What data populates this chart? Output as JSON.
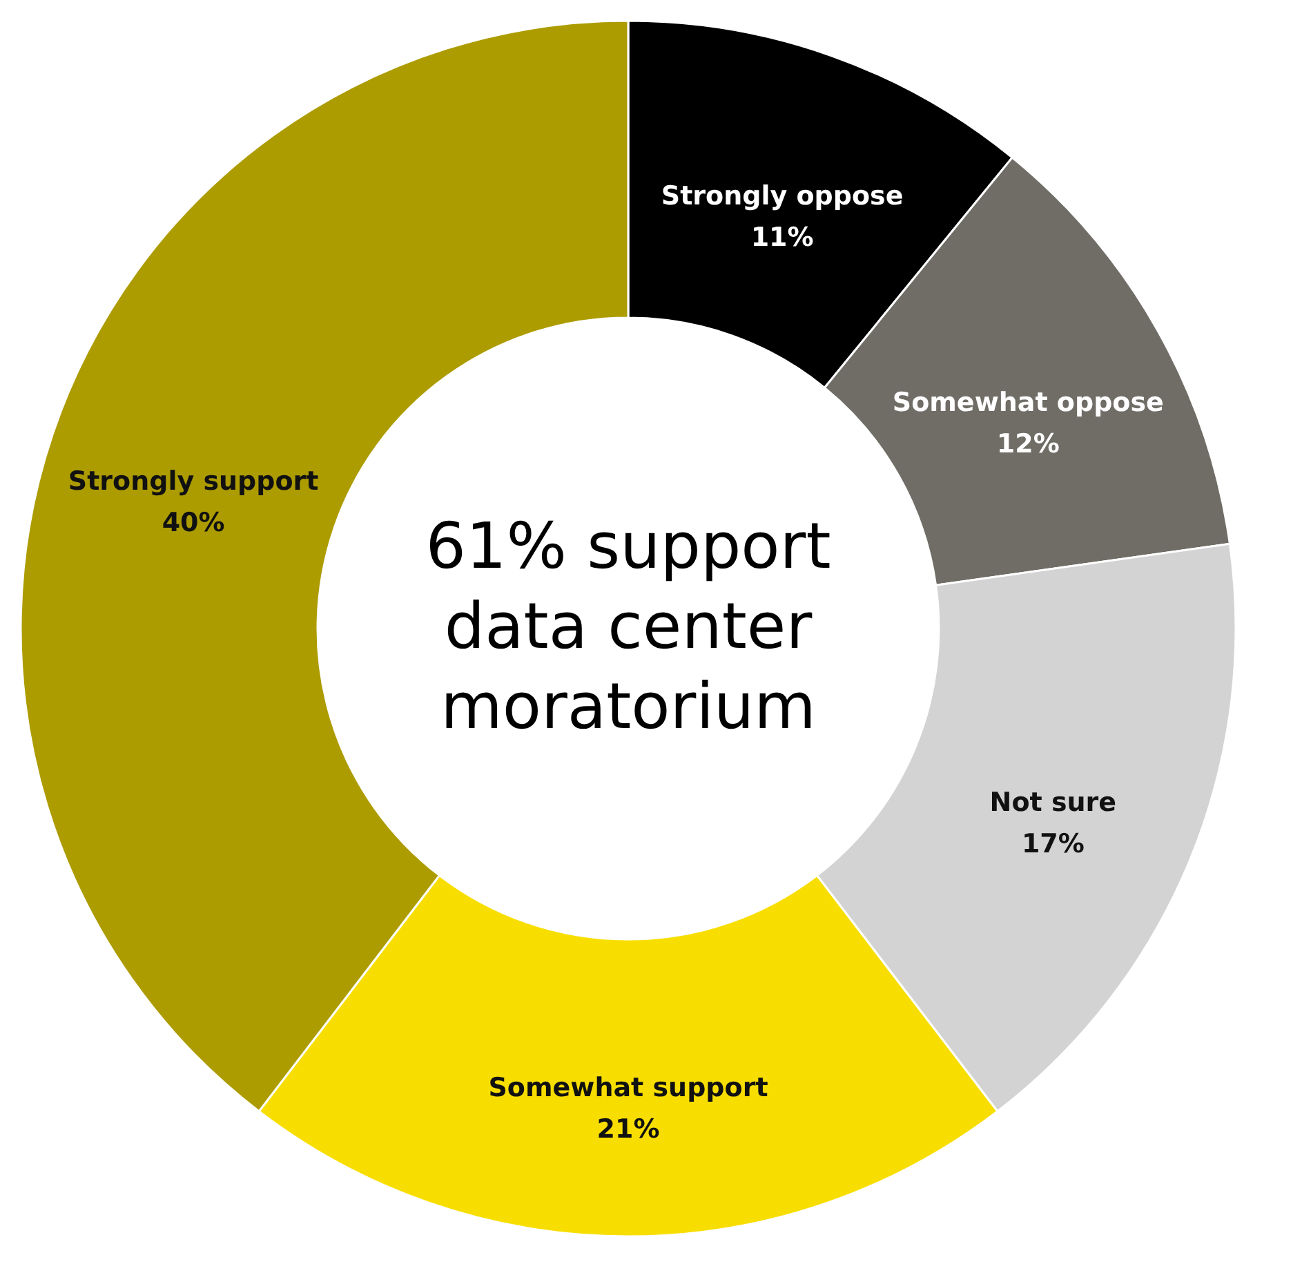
{
  "chart_data": {
    "type": "donut",
    "annotations": [
      "61% support data center moratorium"
    ],
    "categories": [
      "Strongly oppose",
      "Somewhat oppose",
      "Not sure",
      "Somewhat support",
      "Strongly support"
    ],
    "values": [
      11,
      12,
      17,
      21,
      40
    ],
    "value_labels": [
      "11%",
      "12%",
      "17%",
      "21%",
      "40%"
    ],
    "colors": [
      "#000000",
      "#6f6d66",
      "#d3d3d3",
      "#f8de00",
      "#ad9c00"
    ],
    "legend": false
  }
}
